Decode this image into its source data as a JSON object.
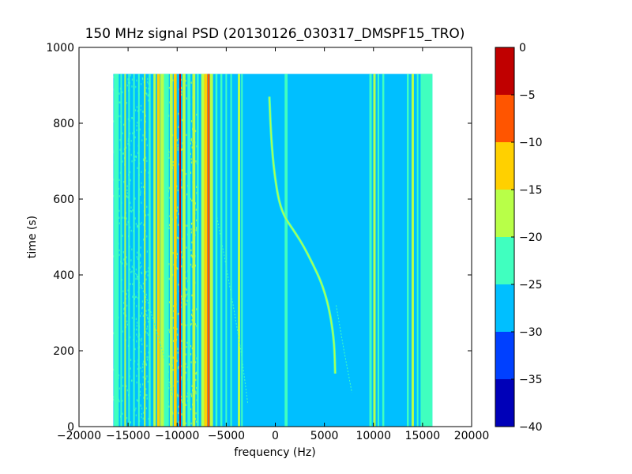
{
  "chart_data": {
    "type": "heatmap",
    "title": "150 MHz signal PSD (20130126_030317_DMSPF15_TRO)",
    "xlabel": "frequency (Hz)",
    "ylabel": "time (s)",
    "xlim": [
      -20000,
      20000
    ],
    "ylim": [
      0,
      1000
    ],
    "x_ticks": [
      -20000,
      -15000,
      -10000,
      -5000,
      0,
      5000,
      10000,
      15000,
      20000
    ],
    "x_tick_labels": [
      "−20000",
      "−15000",
      "−10000",
      "−5000",
      "0",
      "5000",
      "10000",
      "15000",
      "20000"
    ],
    "y_ticks": [
      0,
      200,
      400,
      600,
      800,
      1000
    ],
    "y_tick_labels": [
      "0",
      "200",
      "400",
      "600",
      "800",
      "1000"
    ],
    "data_extent": {
      "x": [
        -16500,
        16000
      ],
      "y": [
        0,
        930
      ]
    },
    "background_level": -27.5,
    "colorbar": {
      "ticks": [
        0,
        -5,
        -10,
        -15,
        -20,
        -25,
        -30,
        -35,
        -40
      ],
      "tick_labels": [
        "0",
        "−5",
        "−10",
        "−15",
        "−20",
        "−25",
        "−30",
        "−35",
        "−40"
      ],
      "levels": [
        {
          "range": [
            -40,
            -35
          ],
          "color": "#0000b8"
        },
        {
          "range": [
            -35,
            -30
          ],
          "color": "#0040ff"
        },
        {
          "range": [
            -30,
            -25
          ],
          "color": "#00bfff"
        },
        {
          "range": [
            -25,
            -20
          ],
          "color": "#40ffbf"
        },
        {
          "range": [
            -20,
            -15
          ],
          "color": "#b8ff48"
        },
        {
          "range": [
            -15,
            -10
          ],
          "color": "#ffd000"
        },
        {
          "range": [
            -10,
            -5
          ],
          "color": "#ff5500"
        },
        {
          "range": [
            -5,
            0
          ],
          "color": "#c00000"
        }
      ]
    },
    "vertical_lines": [
      {
        "f": -16200,
        "half_width": 250,
        "level": -22
      },
      {
        "f": -15700,
        "half_width": 80,
        "level": -22
      },
      {
        "f": -15300,
        "half_width": 80,
        "level": -18
      },
      {
        "f": -14900,
        "half_width": 80,
        "level": -22
      },
      {
        "f": -14400,
        "half_width": 80,
        "level": -22
      },
      {
        "f": -13900,
        "half_width": 80,
        "level": -22
      },
      {
        "f": -13300,
        "half_width": 80,
        "level": -18
      },
      {
        "f": -12800,
        "half_width": 100,
        "level": -22
      },
      {
        "f": -12300,
        "half_width": 120,
        "level": -18
      },
      {
        "f": -11900,
        "half_width": 150,
        "level": -12
      },
      {
        "f": -11500,
        "half_width": 200,
        "level": -18
      },
      {
        "f": -11100,
        "half_width": 250,
        "level": -22
      },
      {
        "f": -10600,
        "half_width": 150,
        "level": -18
      },
      {
        "f": -10200,
        "half_width": 150,
        "level": -12
      },
      {
        "f": -9700,
        "half_width": 80,
        "level": -2
      },
      {
        "f": -9300,
        "half_width": 150,
        "level": -18
      },
      {
        "f": -8800,
        "half_width": 150,
        "level": -22
      },
      {
        "f": -8300,
        "half_width": 150,
        "level": -18
      },
      {
        "f": -7900,
        "half_width": 100,
        "level": -22
      },
      {
        "f": -7400,
        "half_width": 150,
        "level": -18
      },
      {
        "f": -7100,
        "half_width": 150,
        "level": -12
      },
      {
        "f": -6800,
        "half_width": 120,
        "level": -7
      },
      {
        "f": -6500,
        "half_width": 150,
        "level": -18
      },
      {
        "f": -6000,
        "half_width": 100,
        "level": -22
      },
      {
        "f": -5500,
        "half_width": 100,
        "level": -22
      },
      {
        "f": -5000,
        "half_width": 80,
        "level": -22
      },
      {
        "f": -4500,
        "half_width": 80,
        "level": -22
      },
      {
        "f": -3700,
        "half_width": 120,
        "level": -18
      },
      {
        "f": -3400,
        "half_width": 80,
        "level": -22
      },
      {
        "f": 1100,
        "half_width": 150,
        "level": -22
      },
      {
        "f": 9700,
        "half_width": 120,
        "level": -22
      },
      {
        "f": 10100,
        "half_width": 120,
        "level": -18
      },
      {
        "f": 10500,
        "half_width": 80,
        "level": -22
      },
      {
        "f": 11000,
        "half_width": 100,
        "level": -22
      },
      {
        "f": 13500,
        "half_width": 100,
        "level": -22
      },
      {
        "f": 14000,
        "half_width": 120,
        "level": -18
      },
      {
        "f": 14500,
        "half_width": 80,
        "level": -22
      },
      {
        "f": 15400,
        "half_width": 600,
        "level": -22
      }
    ],
    "doppler_trace": {
      "level": -16,
      "points": [
        {
          "f": -600,
          "t": 870
        },
        {
          "f": -500,
          "t": 800
        },
        {
          "f": -300,
          "t": 720
        },
        {
          "f": 0,
          "t": 650
        },
        {
          "f": 400,
          "t": 590
        },
        {
          "f": 1000,
          "t": 550
        },
        {
          "f": 1800,
          "t": 520
        },
        {
          "f": 2800,
          "t": 480
        },
        {
          "f": 3800,
          "t": 430
        },
        {
          "f": 4700,
          "t": 380
        },
        {
          "f": 5300,
          "t": 330
        },
        {
          "f": 5700,
          "t": 280
        },
        {
          "f": 6000,
          "t": 220
        },
        {
          "f": 6100,
          "t": 140
        }
      ]
    },
    "faint_traces": [
      {
        "level": -22,
        "points": [
          {
            "f": -14500,
            "t": 420
          },
          {
            "f": -13000,
            "t": 330
          },
          {
            "f": -11500,
            "t": 200
          },
          {
            "f": -10500,
            "t": 80
          }
        ]
      },
      {
        "level": -22,
        "points": [
          {
            "f": -6000,
            "t": 560
          },
          {
            "f": -5200,
            "t": 450
          },
          {
            "f": -4300,
            "t": 320
          },
          {
            "f": -3500,
            "t": 200
          },
          {
            "f": -2800,
            "t": 60
          }
        ]
      },
      {
        "level": -22,
        "points": [
          {
            "f": 6200,
            "t": 320
          },
          {
            "f": 7000,
            "t": 200
          },
          {
            "f": 7800,
            "t": 90
          }
        ]
      }
    ],
    "speckle_regions": [
      {
        "x": [
          -16500,
          -12800
        ],
        "y": [
          0,
          930
        ],
        "level": -22
      },
      {
        "x": [
          -11200,
          -8000
        ],
        "y": [
          0,
          930
        ],
        "level": -18
      }
    ]
  }
}
